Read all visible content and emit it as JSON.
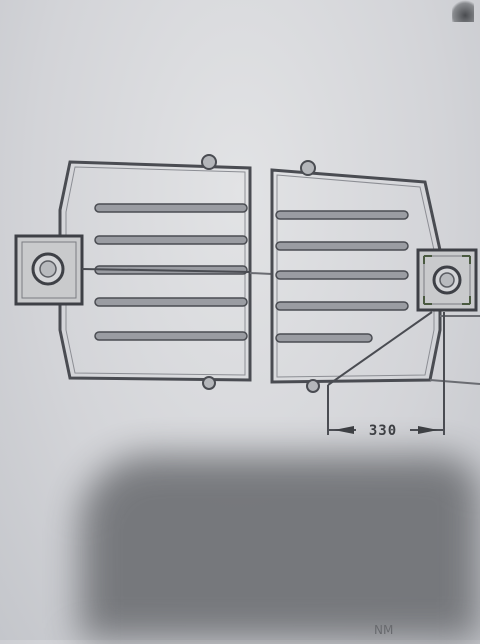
{
  "drawing": {
    "title": "",
    "dimension_label": "330",
    "corner_label": "NM",
    "rail_count_left": 5,
    "rail_count_right": 5
  },
  "colors": {
    "paper": "#d8d9dd",
    "ink": "#4a4c52",
    "rail_fill": "#9a9ca2",
    "mount_fill": "#c9cacc",
    "shadow": "#6f7175"
  },
  "icons": {
    "left_mount": "square-mount-with-hole-icon",
    "right_mount": "square-mount-with-hole-icon",
    "arrow": "dimension-arrow-icon"
  }
}
